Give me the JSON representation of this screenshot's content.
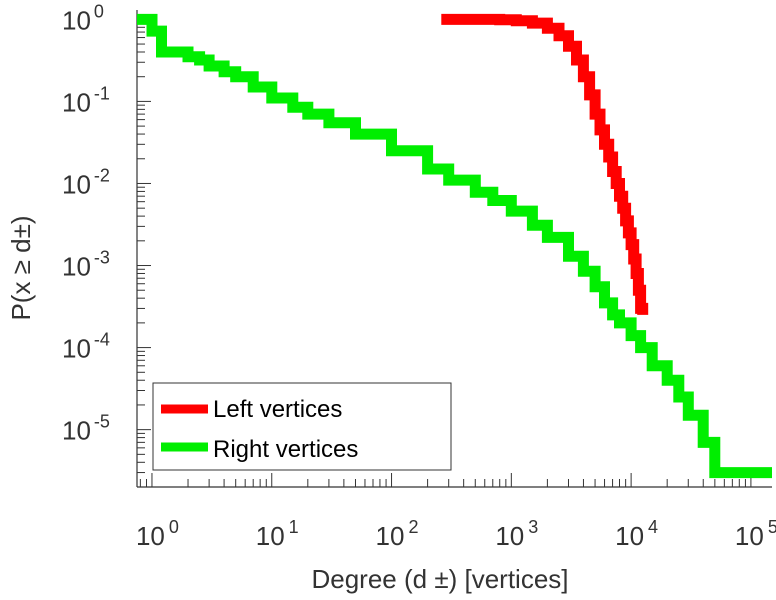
{
  "chart_data": {
    "type": "line",
    "title": "",
    "xlabel": "Degree (d ±) [vertices]",
    "ylabel": "P(x ≥ d±)",
    "x_scale": "log",
    "y_scale": "log",
    "xlim": [
      0.75,
      150000
    ],
    "ylim": [
      2e-06,
      1.3
    ],
    "x_ticks": [
      {
        "base": "10",
        "exp": "0",
        "value": 1
      },
      {
        "base": "10",
        "exp": "1",
        "value": 10
      },
      {
        "base": "10",
        "exp": "2",
        "value": 100
      },
      {
        "base": "10",
        "exp": "3",
        "value": 1000
      },
      {
        "base": "10",
        "exp": "4",
        "value": 10000
      },
      {
        "base": "10",
        "exp": "5",
        "value": 100000
      }
    ],
    "y_ticks": [
      {
        "base": "10",
        "exp": "0",
        "value": 1
      },
      {
        "base": "10",
        "exp": "-1",
        "value": 0.1
      },
      {
        "base": "10",
        "exp": "-2",
        "value": 0.01
      },
      {
        "base": "10",
        "exp": "-3",
        "value": 0.001
      },
      {
        "base": "10",
        "exp": "-4",
        "value": 0.0001
      },
      {
        "base": "10",
        "exp": "-5",
        "value": 1e-05
      }
    ],
    "grid": false,
    "legend_position": "bottom-left",
    "series": [
      {
        "name": "Left vertices",
        "color": "#ff0000",
        "x": [
          260,
          500,
          800,
          1100,
          1500,
          2000,
          2500,
          3000,
          3500,
          4000,
          4500,
          5000,
          5500,
          6000,
          6500,
          7000,
          7500,
          8000,
          8500,
          9000,
          9500,
          10000,
          10500,
          11000,
          11500,
          12000,
          12500
        ],
        "y": [
          1,
          1,
          0.99,
          0.96,
          0.9,
          0.78,
          0.63,
          0.47,
          0.32,
          0.2,
          0.12,
          0.07,
          0.045,
          0.03,
          0.021,
          0.014,
          0.01,
          0.007,
          0.005,
          0.0035,
          0.0025,
          0.0018,
          0.0012,
          0.0008,
          0.0005,
          0.0003,
          0.00025
        ]
      },
      {
        "name": "Right vertices",
        "color": "#00ee00",
        "x": [
          0.75,
          1,
          1.2,
          1.5,
          2,
          2.5,
          3,
          4,
          5,
          7,
          10,
          15,
          20,
          30,
          50,
          100,
          200,
          300,
          500,
          700,
          1000,
          1500,
          2000,
          3000,
          4000,
          5000,
          6000,
          7000,
          8000,
          10000,
          12000,
          15000,
          20000,
          25000,
          30000,
          40000,
          50000,
          100000,
          150000
        ],
        "y": [
          1,
          0.72,
          0.4,
          0.4,
          0.35,
          0.32,
          0.27,
          0.23,
          0.2,
          0.15,
          0.11,
          0.085,
          0.07,
          0.055,
          0.04,
          0.025,
          0.015,
          0.011,
          0.0078,
          0.0062,
          0.0046,
          0.0031,
          0.0022,
          0.0013,
          0.00085,
          0.00055,
          0.00035,
          0.00025,
          0.0002,
          0.00014,
          0.0001,
          6e-05,
          4e-05,
          2.5e-05,
          1.5e-05,
          7e-06,
          3e-06,
          3e-06,
          3e-06
        ]
      }
    ]
  }
}
